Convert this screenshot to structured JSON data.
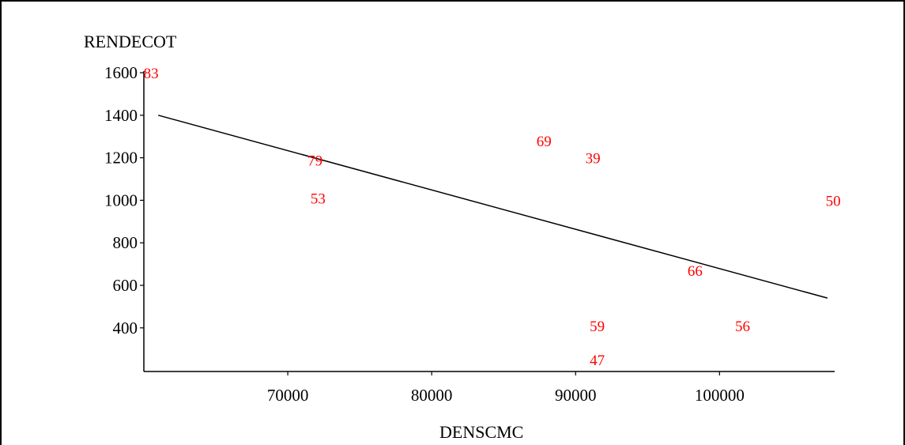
{
  "chart_data": {
    "type": "scatter",
    "title": "",
    "xlabel": "DENSCMC",
    "ylabel": "RENDECOT",
    "xlim": [
      60000,
      108000
    ],
    "ylim": [
      200,
      1600
    ],
    "x_ticks": [
      {
        "value": 70000,
        "label": "70000"
      },
      {
        "value": 80000,
        "label": "80000"
      },
      {
        "value": 90000,
        "label": "90000"
      },
      {
        "value": 100000,
        "label": "100000"
      }
    ],
    "y_ticks": [
      {
        "value": 1600,
        "label": "1600"
      },
      {
        "value": 1400,
        "label": "1400"
      },
      {
        "value": 1200,
        "label": "1200"
      },
      {
        "value": 1000,
        "label": "1000"
      },
      {
        "value": 800,
        "label": "800"
      },
      {
        "value": 600,
        "label": "600"
      },
      {
        "value": 400,
        "label": "400"
      }
    ],
    "points": [
      {
        "label": "83",
        "x": 60500,
        "y": 1600
      },
      {
        "label": "79",
        "x": 71900,
        "y": 1190
      },
      {
        "label": "53",
        "x": 72100,
        "y": 1010
      },
      {
        "label": "69",
        "x": 87800,
        "y": 1280
      },
      {
        "label": "39",
        "x": 91200,
        "y": 1200
      },
      {
        "label": "50",
        "x": 107900,
        "y": 1000
      },
      {
        "label": "66",
        "x": 98300,
        "y": 670
      },
      {
        "label": "59",
        "x": 91500,
        "y": 410
      },
      {
        "label": "56",
        "x": 101600,
        "y": 410
      },
      {
        "label": "47",
        "x": 91500,
        "y": 250
      }
    ],
    "fit_line": {
      "x": [
        61000,
        107500
      ],
      "y": [
        1400,
        540
      ]
    },
    "colors": {
      "points": "#ff0000",
      "line": "#000000",
      "axes": "#000000"
    },
    "grid": false,
    "legend": "none"
  }
}
